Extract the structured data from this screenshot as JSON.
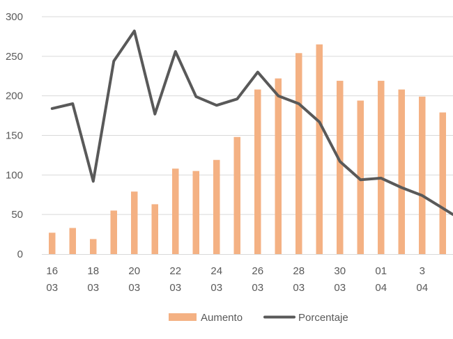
{
  "chart_data": {
    "type": "bar+line",
    "y_ticks": [
      "0",
      "50",
      "100",
      "150",
      "200",
      "250",
      "300"
    ],
    "ylim": [
      0,
      300
    ],
    "x_tick_labels": [
      {
        "day": "16",
        "month": "03"
      },
      {
        "day": "18",
        "month": "03"
      },
      {
        "day": "20",
        "month": "03"
      },
      {
        "day": "22",
        "month": "03"
      },
      {
        "day": "24",
        "month": "03"
      },
      {
        "day": "26",
        "month": "03"
      },
      {
        "day": "28",
        "month": "03"
      },
      {
        "day": "30",
        "month": "03"
      },
      {
        "day": "01",
        "month": "04"
      },
      {
        "day": "3",
        "month": "04"
      }
    ],
    "series": [
      {
        "name": "Aumento",
        "type": "bar",
        "color": "#F4B183",
        "values": [
          27,
          33,
          19,
          55,
          79,
          63,
          108,
          105,
          119,
          148,
          208,
          222,
          254,
          265,
          219,
          194,
          219,
          208,
          199,
          179
        ]
      },
      {
        "name": "Porcentaje",
        "type": "line",
        "color": "#595959",
        "values": [
          184,
          190,
          92,
          244,
          282,
          177,
          256,
          199,
          188,
          196,
          230,
          200,
          190,
          167,
          117,
          94,
          96,
          84,
          74,
          58
        ]
      }
    ],
    "grid": "horizontal",
    "legend_position": "bottom"
  }
}
